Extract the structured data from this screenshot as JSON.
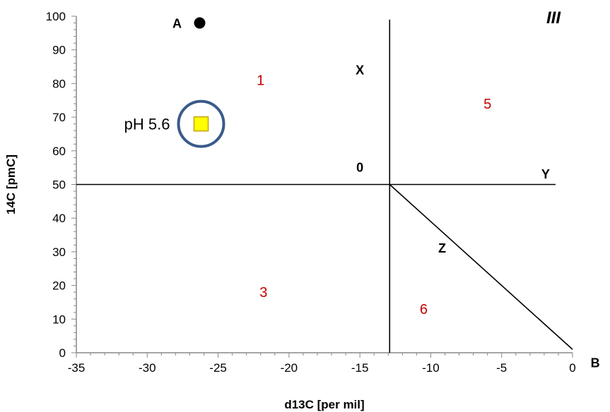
{
  "chart_data": {
    "type": "scatter",
    "xlabel": "d13C [per mil]",
    "ylabel": "14C [pmC]",
    "xlim": [
      -35,
      0
    ],
    "ylim": [
      0,
      100
    ],
    "x_ticks": [
      -35,
      -30,
      -25,
      -20,
      -15,
      -10,
      -5,
      0
    ],
    "y_ticks": [
      0,
      10,
      20,
      30,
      40,
      50,
      60,
      70,
      80,
      90,
      100
    ],
    "grid": false,
    "panel_label": "III",
    "points": [
      {
        "label": "A",
        "x": -26.3,
        "y": 98,
        "marker": "circle",
        "color": "#000000"
      },
      {
        "label": "pH 5.6",
        "x": -26.2,
        "y": 68,
        "marker": "square",
        "color": "#ffff00",
        "edge": "#c8a000",
        "ring_color": "#3a5a8a"
      }
    ],
    "lines": [
      {
        "from": [
          -35,
          50
        ],
        "to": [
          -1.2,
          50
        ]
      },
      {
        "from": [
          -12.9,
          99
        ],
        "to": [
          -12.9,
          0
        ]
      },
      {
        "from": [
          -12.9,
          50
        ],
        "to": [
          0,
          1
        ]
      }
    ],
    "line_labels": [
      {
        "text": "X",
        "x": -15,
        "y": 84
      },
      {
        "text": "Y",
        "x": -1.9,
        "y": 53
      },
      {
        "text": "Z",
        "x": -9.2,
        "y": 31
      },
      {
        "text": "0",
        "x": -15,
        "y": 55
      },
      {
        "text": "B",
        "x": 1.6,
        "y": -3
      }
    ],
    "region_labels": [
      {
        "text": "1",
        "x": -22,
        "y": 81
      },
      {
        "text": "5",
        "x": -6,
        "y": 74
      },
      {
        "text": "3",
        "x": -21.8,
        "y": 18
      },
      {
        "text": "6",
        "x": -10.5,
        "y": 13
      }
    ]
  }
}
